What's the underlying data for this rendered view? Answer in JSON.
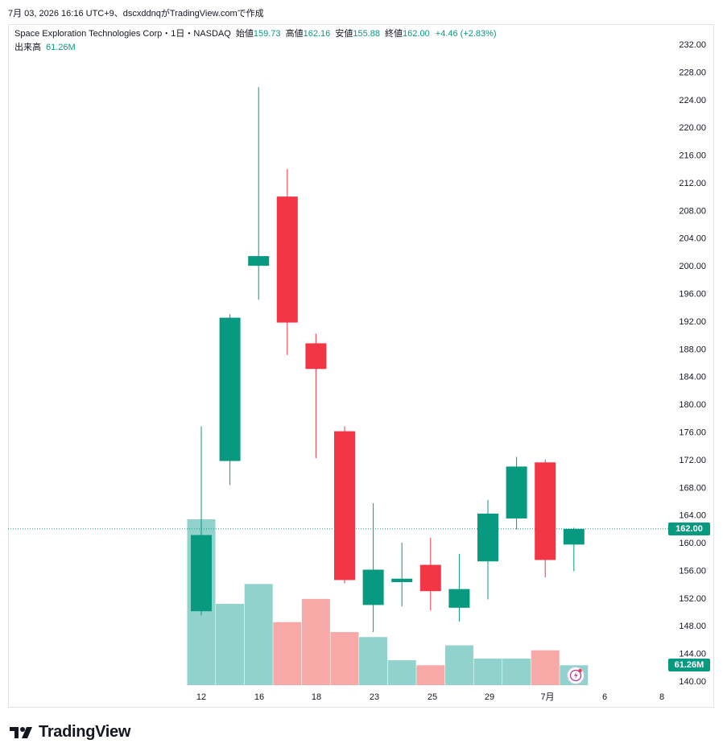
{
  "caption": "7月 03, 2026 16:16 UTC+9、dscxddnqがTradingView.comで作成",
  "legend": {
    "symbol": "Space Exploration Technologies Corp・1日・NASDAQ",
    "open_label": "始値",
    "open": "159.73",
    "high_label": "高値",
    "high": "162.16",
    "low_label": "安値",
    "low": "155.88",
    "close_label": "終値",
    "close": "162.00",
    "change": "+4.46 (+2.83%)",
    "volume_label": "出来高",
    "volume": "61.26M"
  },
  "badges": {
    "price": "162.00",
    "volume": "61.26M"
  },
  "brand": "TradingView",
  "colors": {
    "up": "#089981",
    "down": "#f23645",
    "up_vol": "#92d2cc",
    "down_vol": "#f7a9a7"
  },
  "chart_data": {
    "type": "candlestick",
    "y_ticks": [
      "232.00",
      "228.00",
      "224.00",
      "220.00",
      "216.00",
      "212.00",
      "208.00",
      "204.00",
      "200.00",
      "196.00",
      "192.00",
      "188.00",
      "184.00",
      "180.00",
      "176.00",
      "172.00",
      "168.00",
      "164.00",
      "160.00",
      "156.00",
      "152.00",
      "148.00",
      "144.00",
      "140.00"
    ],
    "x_ticks": [
      "12",
      "16",
      "18",
      "23",
      "25",
      "29",
      "7月",
      "6",
      "8"
    ],
    "ylim": [
      139.5,
      234
    ],
    "last_price": 162.0,
    "candles": [
      {
        "open": 150.1,
        "high": 176.8,
        "low": 149.5,
        "close": 161.1,
        "volume_rel": 1.0,
        "dir": "up"
      },
      {
        "open": 171.8,
        "high": 193.0,
        "low": 168.3,
        "close": 192.5,
        "volume_rel": 0.49,
        "dir": "up"
      },
      {
        "open": 200.0,
        "high": 225.8,
        "low": 195.1,
        "close": 201.4,
        "volume_rel": 0.61,
        "dir": "up"
      },
      {
        "open": 210.0,
        "high": 214.0,
        "low": 187.1,
        "close": 191.8,
        "volume_rel": 0.38,
        "dir": "down"
      },
      {
        "open": 188.8,
        "high": 190.2,
        "low": 172.2,
        "close": 185.1,
        "volume_rel": 0.52,
        "dir": "down"
      },
      {
        "open": 176.1,
        "high": 176.8,
        "low": 154.1,
        "close": 154.6,
        "volume_rel": 0.32,
        "dir": "down"
      },
      {
        "open": 151.0,
        "high": 165.7,
        "low": 147.1,
        "close": 156.1,
        "volume_rel": 0.29,
        "dir": "up"
      },
      {
        "open": 154.3,
        "high": 160.0,
        "low": 150.8,
        "close": 154.8,
        "volume_rel": 0.15,
        "dir": "up"
      },
      {
        "open": 156.8,
        "high": 160.7,
        "low": 150.2,
        "close": 153.0,
        "volume_rel": 0.12,
        "dir": "down"
      },
      {
        "open": 150.6,
        "high": 158.4,
        "low": 148.6,
        "close": 153.3,
        "volume_rel": 0.24,
        "dir": "up"
      },
      {
        "open": 157.3,
        "high": 166.2,
        "low": 151.8,
        "close": 164.2,
        "volume_rel": 0.16,
        "dir": "up"
      },
      {
        "open": 163.5,
        "high": 172.4,
        "low": 161.9,
        "close": 171.0,
        "volume_rel": 0.16,
        "dir": "up"
      },
      {
        "open": 171.6,
        "high": 172.0,
        "low": 155.0,
        "close": 157.5,
        "volume_rel": 0.21,
        "dir": "down"
      },
      {
        "open": 159.73,
        "high": 162.16,
        "low": 155.88,
        "close": 162.0,
        "volume_rel": 0.12,
        "dir": "up"
      }
    ]
  }
}
